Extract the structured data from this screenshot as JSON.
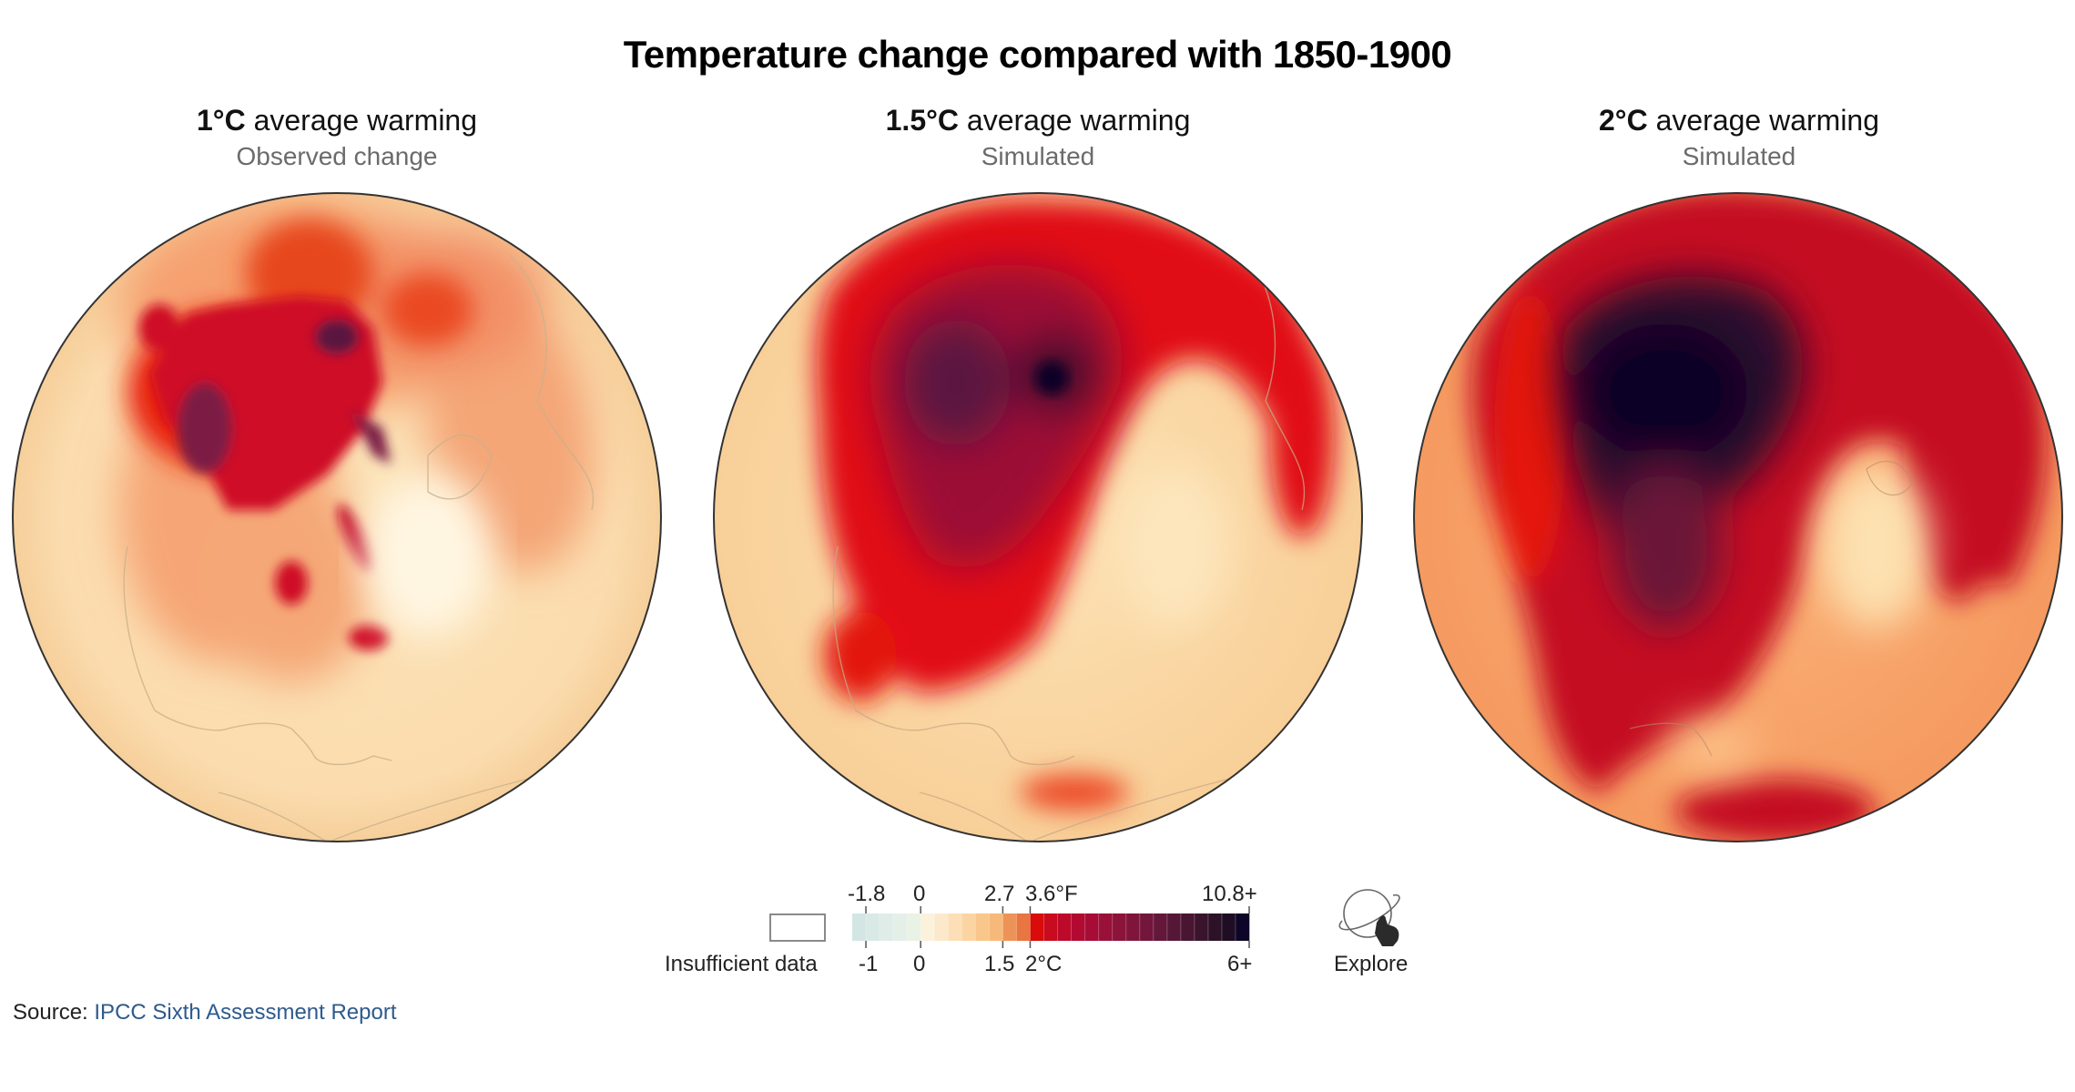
{
  "title": "Temperature change compared with 1850-1900",
  "panels": [
    {
      "bold": "1°C",
      "rest": " average warming",
      "subtitle": "Observed change"
    },
    {
      "bold": "1.5°C",
      "rest": " average warming",
      "subtitle": "Simulated"
    },
    {
      "bold": "2°C",
      "rest": " average warming",
      "subtitle": "Simulated"
    }
  ],
  "legend": {
    "insufficient_label": "Insufficient data",
    "top_labels": [
      "-1.8",
      "0",
      "2.7",
      "3.6°F",
      "10.8+"
    ],
    "bottom_labels": [
      "-1",
      "0",
      "1.5",
      "2°C",
      "6+"
    ],
    "explore_label": "Explore"
  },
  "source": {
    "prefix": "Source: ",
    "link": "IPCC Sixth Assessment Report"
  },
  "chart_data": {
    "type": "heatmap",
    "title": "Temperature change compared with 1850-1900",
    "projection": "orthographic (north polar view)",
    "maps": [
      {
        "label": "1°C average warming",
        "subtitle": "Observed change",
        "global_mean_warming_c": 1
      },
      {
        "label": "1.5°C average warming",
        "subtitle": "Simulated",
        "global_mean_warming_c": 1.5
      },
      {
        "label": "2°C average warming",
        "subtitle": "Simulated",
        "global_mean_warming_c": 2
      }
    ],
    "colorbar": {
      "unit_bottom": "°C",
      "unit_top": "°F",
      "range_c": [
        -1.25,
        6
      ],
      "step_c": 0.25,
      "ticks_c": [
        -1,
        0,
        1.5,
        2,
        6
      ],
      "ticks_f": [
        -1.8,
        0,
        2.7,
        3.6,
        10.8
      ],
      "colors": [
        "#d3e6e4",
        "#d9e9e6",
        "#dfece8",
        "#e4efe7",
        "#eaf2e5",
        "#fbf2dc",
        "#fce9cb",
        "#fcdfb6",
        "#fbd4a2",
        "#f9c68c",
        "#f7b97a",
        "#ee9357",
        "#e87542",
        "#d90b0b",
        "#c90b1f",
        "#bd0a2a",
        "#b20a30",
        "#a60c36",
        "#991038",
        "#8c133a",
        "#7f153b",
        "#72163b",
        "#64173a",
        "#561736",
        "#481631",
        "#3a142c",
        "#2c1127",
        "#1f0d24",
        "#0d0628"
      ]
    },
    "insufficient_data_color": "#ffffff"
  }
}
